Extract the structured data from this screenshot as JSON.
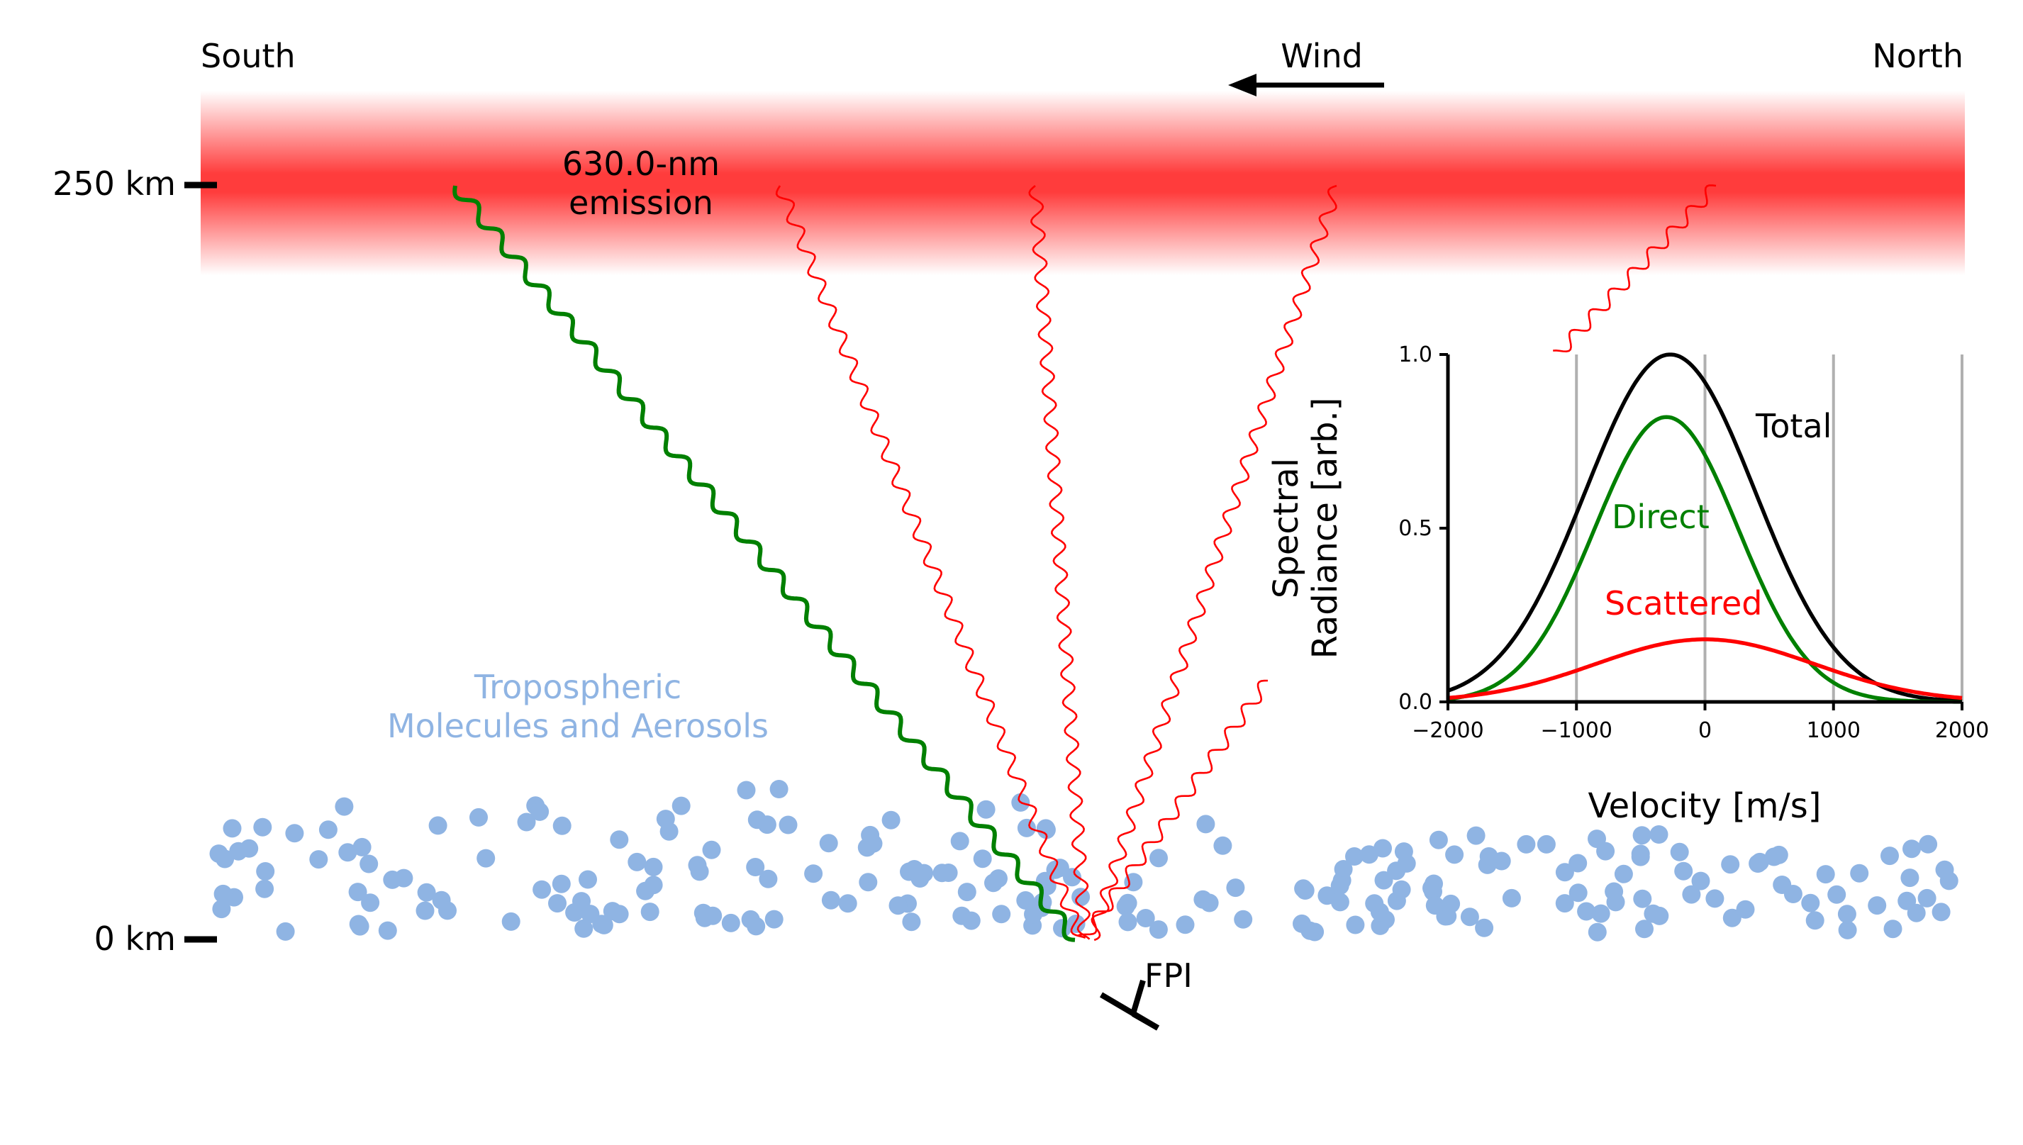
{
  "labels": {
    "south": "South",
    "north": "North",
    "wind": "Wind",
    "altitude_top": "250 km",
    "altitude_bottom": "0 km",
    "emission_line1": "630.0-nm",
    "emission_line2": "emission",
    "tropo_line1": "Tropospheric",
    "tropo_line2": "Molecules and Aerosols",
    "instrument": "FPI"
  },
  "colors": {
    "emission": "#ff3c3c",
    "direct": "#008000",
    "scattered": "#ff0000",
    "total": "#000000",
    "particles": "#8fb4e3",
    "grid": "#b0b0b0"
  },
  "chart_data": {
    "type": "line",
    "xlabel": "Velocity [m/s]",
    "ylabel_line1": "Spectral",
    "ylabel_line2": "Radiance [arb.]",
    "xlim": [
      -2000,
      2000
    ],
    "ylim": [
      0,
      1.0
    ],
    "xticks": [
      -2000,
      -1000,
      0,
      1000,
      2000
    ],
    "xtick_labels": [
      "−2000",
      "−1000",
      "0",
      "1000",
      "2000"
    ],
    "yticks": [
      0.0,
      0.5,
      1.0
    ],
    "ytick_labels": [
      "0.0",
      "0.5",
      "1.0"
    ],
    "grid": "vertical lines at x ticks",
    "series": [
      {
        "name": "Total",
        "amplitude": 1.0,
        "center": -270,
        "sigma": 660,
        "color": "#000000"
      },
      {
        "name": "Direct",
        "amplitude": 0.82,
        "center": -300,
        "sigma": 560,
        "color": "#008000"
      },
      {
        "name": "Scattered",
        "amplitude": 0.18,
        "center": 0,
        "sigma": 850,
        "color": "#ff0000"
      }
    ]
  }
}
